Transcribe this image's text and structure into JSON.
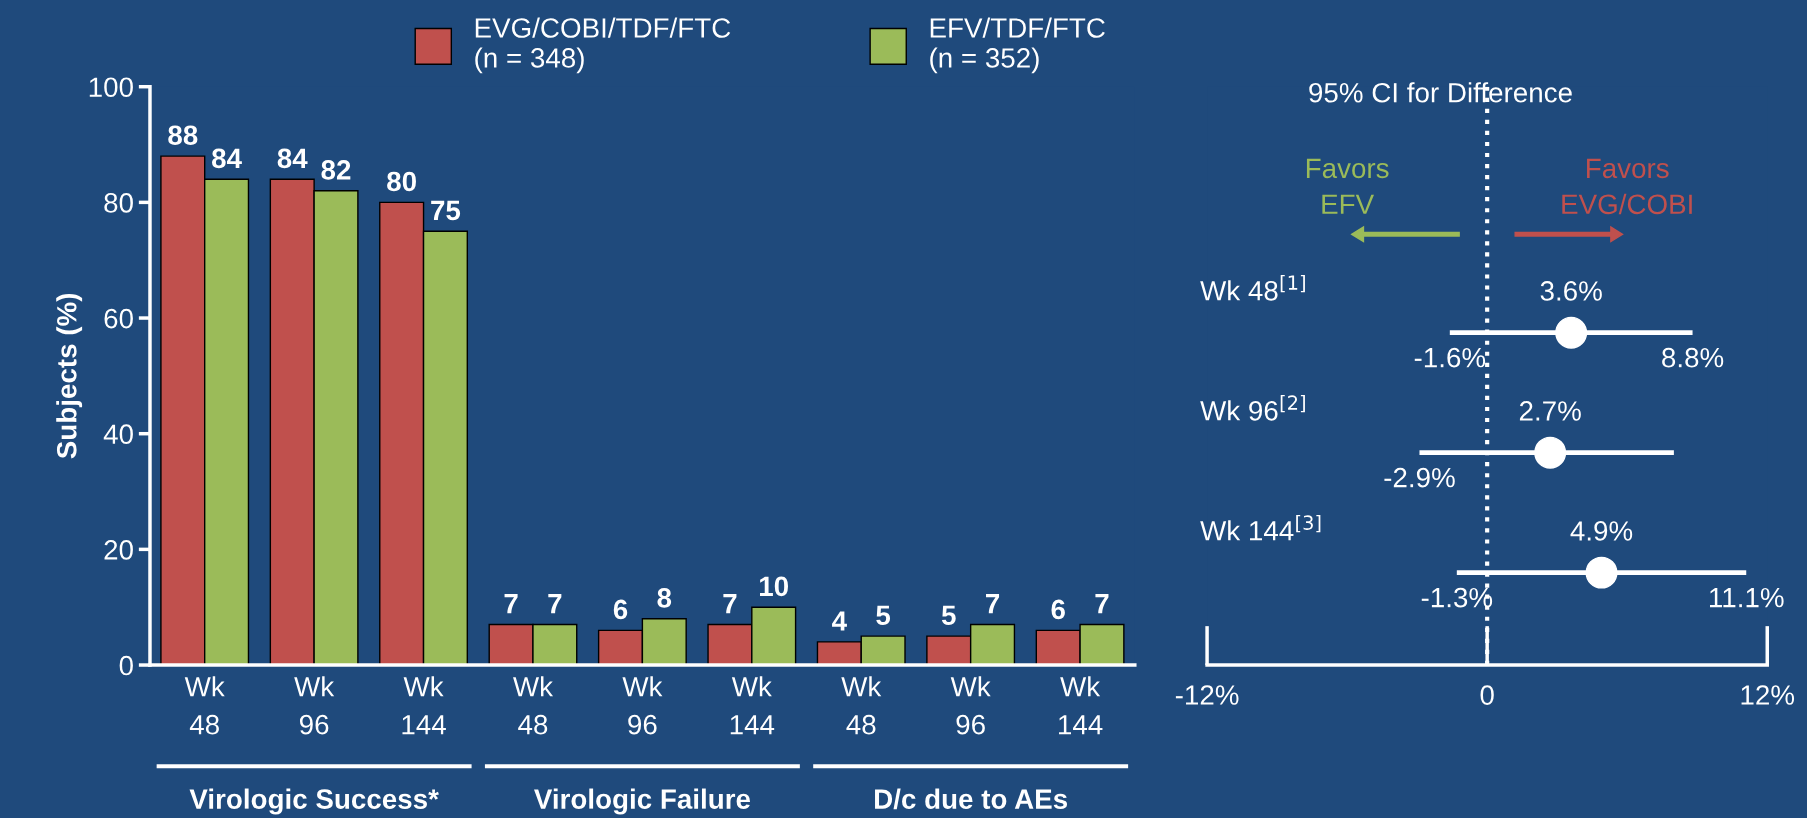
{
  "chart_data": [
    {
      "type": "bar",
      "ylabel": "Subjects (%)",
      "categories": [
        "Wk\n48",
        "Wk\n96",
        "Wk\n144",
        "Wk\n48",
        "Wk\n96",
        "Wk\n144",
        "Wk\n48",
        "Wk\n96",
        "Wk\n144"
      ],
      "series": [
        {
          "name": "EVG/COBI/TDF/FTC\n(n = 348)",
          "color": "#c0504d",
          "values": [
            88,
            84,
            80,
            7,
            6,
            7,
            4,
            5,
            6
          ]
        },
        {
          "name": "EFV/TDF/FTC\n(n = 352)",
          "color": "#9bbb59",
          "values": [
            84,
            82,
            75,
            7,
            8,
            10,
            5,
            7,
            7
          ]
        }
      ],
      "ylim": [
        0,
        100
      ],
      "yticks": [
        0,
        20,
        40,
        60,
        80,
        100
      ],
      "data_labels": true,
      "legend": "top",
      "grid": false,
      "annotations": [
        "Virologic Success*",
        "Virologic Failure",
        "D/c due to AEs"
      ]
    },
    {
      "type": "scatter",
      "orientation": "horizontal",
      "title": "95% CI for Difference",
      "categories": [
        "Wk 48$^{[1]}$",
        "Wk 96$^{[2]}$",
        "Wk 144$^{[3]}$"
      ],
      "values": [
        3.6,
        2.7,
        4.9
      ],
      "color": "#ffffff",
      "marker": "circle",
      "errors": [
        [
          -1.6,
          8.8
        ],
        [
          -2.9,
          8.0
        ],
        [
          -1.3,
          11.1
        ]
      ],
      "value_labels": [
        "3.6%",
        "2.7%",
        "4.9%"
      ],
      "xlim": [
        -12,
        12
      ],
      "xticks": [
        {
          "value": -12,
          "label": "-12%"
        },
        0,
        {
          "value": 12,
          "label": "12%"
        }
      ],
      "ref_lines": [
        {
          "axis": "x",
          "value": 0,
          "line_style": "dotted",
          "color": "#ffffff"
        }
      ],
      "annotations": [
        "Favors\nEFV",
        "Favors\nEVG/COBI",
        "-1.6%",
        "8.8%",
        "-2.9%",
        "-1.3%",
        "11.1%"
      ]
    }
  ]
}
